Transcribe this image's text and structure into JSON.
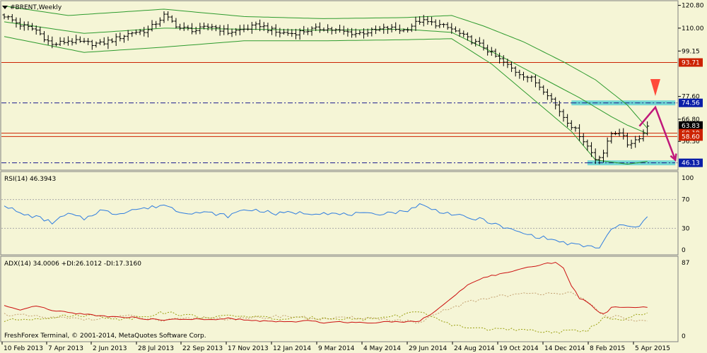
{
  "terminal": {
    "title": "#BRENT,Weekly",
    "credit": "FreshForex Terminal, © 2001-2014, MetaQuotes Software Corp."
  },
  "colors": {
    "background": "#f5f5d6",
    "bars": "#000000",
    "bollinger": "#2e9b2e",
    "resistance": "#cc2200",
    "dashed_level": "#1a1a8c",
    "zone": "#5fd3d3",
    "forecast": "#c0187a",
    "rsi": "#2f7de0",
    "adx": "#cc1010",
    "di_plus": "#9aa010",
    "di_minus": "#c3a070",
    "price_tag_red": "#cc2200",
    "price_tag_blue": "#0a1ea8",
    "price_tag_black": "#000000"
  },
  "icons": [
    "dropdown-triangle-icon",
    "sell-arrow-icon"
  ],
  "price_panel": {
    "axis_labels": [
      "120.80",
      "110.00",
      "99.15",
      "77.60",
      "66.80",
      "56.30"
    ],
    "price_tags": [
      {
        "name": "price-tag-93-71",
        "text": "93.71",
        "value": 93.71,
        "color": "#cc2200"
      },
      {
        "name": "price-tag-74-56",
        "text": "74.56",
        "value": 74.56,
        "color": "#0a1ea8"
      },
      {
        "name": "price-tag-63-83",
        "text": "63.83",
        "value": 63.83,
        "color": "#000000"
      },
      {
        "name": "price-tag-60-19",
        "text": "60.19",
        "value": 60.19,
        "color": "#cc2200"
      },
      {
        "name": "price-tag-58-60",
        "text": "58.60",
        "value": 58.6,
        "color": "#cc2200"
      },
      {
        "name": "price-tag-46-13",
        "text": "46.13",
        "value": 46.13,
        "color": "#0a1ea8"
      }
    ],
    "horizontal_lines": [
      {
        "value": 93.71,
        "style": "solid",
        "color": "#cc2200"
      },
      {
        "value": 60.19,
        "style": "solid",
        "color": "#cc2200"
      },
      {
        "value": 58.6,
        "style": "solid",
        "color": "#cc2200"
      },
      {
        "value": 74.56,
        "style": "dashdot",
        "color": "#1a1a8c"
      },
      {
        "value": 46.13,
        "style": "dashdot",
        "color": "#1a1a8c"
      }
    ],
    "zones": [
      {
        "value": 74.56,
        "from_week": 142,
        "to_week": 168
      },
      {
        "value": 46.13,
        "from_week": 146,
        "to_week": 168
      }
    ],
    "forecast_path": [
      [
        159,
        63.5
      ],
      [
        163,
        72.5
      ],
      [
        165.5,
        60.0
      ],
      [
        168,
        47.5
      ]
    ],
    "sell_marker": {
      "week": 163,
      "value": 78.5
    }
  },
  "rsi_panel": {
    "label": "RSI(14) 46.3943",
    "axis_labels": [
      "100",
      "70",
      "30",
      "0"
    ],
    "levels": [
      70,
      30
    ]
  },
  "adx_panel": {
    "label": "ADX(14) 34.0006 +DI:26.1012 -DI:17.3160",
    "axis_labels": [
      "87",
      "0"
    ]
  },
  "time_axis": [
    "10 Feb 2013",
    "7 Apr 2013",
    "2 Jun 2013",
    "28 Jul 2013",
    "22 Sep 2013",
    "17 Nov 2013",
    "12 Jan 2014",
    "9 Mar 2014",
    "4 May 2014",
    "29 Jun 2014",
    "24 Aug 2014",
    "19 Oct 2014",
    "14 Dec 2014",
    "8 Feb 2015",
    "5 Apr 2015"
  ],
  "chart_data": {
    "type": "line",
    "title": "#BRENT,Weekly",
    "x_weeks_start": "10 Feb 2013",
    "weeks": 162,
    "price_close_anchors": [
      [
        0,
        116.0
      ],
      [
        4,
        111.5
      ],
      [
        8,
        109.0
      ],
      [
        12,
        102.0
      ],
      [
        16,
        104.0
      ],
      [
        20,
        103.0
      ],
      [
        24,
        102.5
      ],
      [
        28,
        105.0
      ],
      [
        32,
        108.0
      ],
      [
        36,
        109.0
      ],
      [
        40,
        116.0
      ],
      [
        44,
        110.0
      ],
      [
        48,
        109.0
      ],
      [
        52,
        111.0
      ],
      [
        56,
        108.0
      ],
      [
        60,
        109.5
      ],
      [
        64,
        111.5
      ],
      [
        68,
        108.0
      ],
      [
        72,
        107.5
      ],
      [
        76,
        109.0
      ],
      [
        80,
        110.0
      ],
      [
        84,
        108.5
      ],
      [
        88,
        107.5
      ],
      [
        92,
        108.5
      ],
      [
        96,
        110.0
      ],
      [
        100,
        109.0
      ],
      [
        104,
        113.5
      ],
      [
        108,
        112.0
      ],
      [
        112,
        109.5
      ],
      [
        116,
        105.0
      ],
      [
        120,
        101.0
      ],
      [
        124,
        95.0
      ],
      [
        128,
        89.5
      ],
      [
        132,
        86.0
      ],
      [
        136,
        79.0
      ],
      [
        140,
        68.0
      ],
      [
        144,
        59.5
      ],
      [
        146,
        54.0
      ],
      [
        148,
        48.0
      ],
      [
        150,
        51.0
      ],
      [
        152,
        60.0
      ],
      [
        154,
        61.0
      ],
      [
        156,
        55.0
      ],
      [
        158,
        57.0
      ],
      [
        160,
        60.0
      ],
      [
        161,
        63.83
      ]
    ],
    "bb_upper_anchors": [
      [
        0,
        120.5
      ],
      [
        16,
        116.0
      ],
      [
        40,
        119.0
      ],
      [
        60,
        115.5
      ],
      [
        80,
        114.5
      ],
      [
        100,
        115.0
      ],
      [
        112,
        116.0
      ],
      [
        120,
        111.0
      ],
      [
        130,
        103.5
      ],
      [
        140,
        94.0
      ],
      [
        148,
        85.5
      ],
      [
        156,
        73.5
      ],
      [
        161,
        62.5
      ]
    ],
    "bb_mid_anchors": [
      [
        0,
        113.0
      ],
      [
        20,
        107.5
      ],
      [
        40,
        110.0
      ],
      [
        60,
        109.5
      ],
      [
        80,
        109.0
      ],
      [
        100,
        109.5
      ],
      [
        112,
        108.0
      ],
      [
        124,
        97.0
      ],
      [
        134,
        87.0
      ],
      [
        144,
        77.0
      ],
      [
        152,
        68.0
      ],
      [
        156,
        64.0
      ],
      [
        161,
        60.0
      ]
    ],
    "bb_lower_anchors": [
      [
        0,
        106.0
      ],
      [
        20,
        98.5
      ],
      [
        40,
        101.0
      ],
      [
        60,
        104.0
      ],
      [
        80,
        104.0
      ],
      [
        100,
        104.5
      ],
      [
        112,
        105.0
      ],
      [
        122,
        93.0
      ],
      [
        132,
        77.0
      ],
      [
        142,
        61.0
      ],
      [
        148,
        47.5
      ],
      [
        152,
        46.5
      ],
      [
        156,
        45.5
      ],
      [
        161,
        46.8
      ]
    ],
    "rsi_anchors": [
      [
        0,
        63
      ],
      [
        4,
        50
      ],
      [
        8,
        46
      ],
      [
        12,
        38
      ],
      [
        16,
        50
      ],
      [
        20,
        43
      ],
      [
        24,
        55
      ],
      [
        28,
        50
      ],
      [
        32,
        56
      ],
      [
        36,
        58
      ],
      [
        40,
        63
      ],
      [
        44,
        53
      ],
      [
        48,
        52
      ],
      [
        52,
        51
      ],
      [
        56,
        47
      ],
      [
        60,
        56
      ],
      [
        64,
        55
      ],
      [
        68,
        50
      ],
      [
        72,
        52
      ],
      [
        76,
        51
      ],
      [
        80,
        52
      ],
      [
        84,
        49
      ],
      [
        88,
        50
      ],
      [
        92,
        49
      ],
      [
        96,
        52
      ],
      [
        100,
        53
      ],
      [
        104,
        63
      ],
      [
        108,
        55
      ],
      [
        112,
        50
      ],
      [
        116,
        44
      ],
      [
        120,
        42
      ],
      [
        124,
        33
      ],
      [
        128,
        26
      ],
      [
        132,
        20
      ],
      [
        136,
        16
      ],
      [
        140,
        10
      ],
      [
        144,
        6
      ],
      [
        148,
        4
      ],
      [
        149,
        3
      ],
      [
        152,
        28
      ],
      [
        154,
        35
      ],
      [
        156,
        32
      ],
      [
        158,
        31
      ],
      [
        160,
        38
      ],
      [
        161,
        46.39
      ]
    ],
    "adx_anchors": [
      [
        0,
        36
      ],
      [
        4,
        30
      ],
      [
        8,
        36
      ],
      [
        12,
        30
      ],
      [
        16,
        28
      ],
      [
        20,
        26
      ],
      [
        24,
        24
      ],
      [
        28,
        23
      ],
      [
        32,
        22
      ],
      [
        36,
        20
      ],
      [
        40,
        19
      ],
      [
        44,
        20
      ],
      [
        48,
        20
      ],
      [
        52,
        19
      ],
      [
        56,
        21
      ],
      [
        60,
        19
      ],
      [
        64,
        18
      ],
      [
        68,
        17
      ],
      [
        72,
        17
      ],
      [
        76,
        18
      ],
      [
        80,
        16
      ],
      [
        84,
        17
      ],
      [
        88,
        16
      ],
      [
        92,
        16
      ],
      [
        96,
        17
      ],
      [
        100,
        17
      ],
      [
        104,
        18
      ],
      [
        108,
        30
      ],
      [
        112,
        45
      ],
      [
        116,
        60
      ],
      [
        120,
        70
      ],
      [
        124,
        73
      ],
      [
        128,
        78
      ],
      [
        132,
        82
      ],
      [
        136,
        86
      ],
      [
        138,
        87
      ],
      [
        140,
        80
      ],
      [
        142,
        60
      ],
      [
        144,
        45
      ],
      [
        146,
        40
      ],
      [
        148,
        32
      ],
      [
        149,
        28
      ],
      [
        150,
        27
      ],
      [
        151,
        29
      ],
      [
        152,
        34.0
      ]
    ],
    "di_plus_anchors": [
      [
        0,
        18
      ],
      [
        10,
        22
      ],
      [
        20,
        25
      ],
      [
        30,
        20
      ],
      [
        40,
        28
      ],
      [
        50,
        22
      ],
      [
        60,
        24
      ],
      [
        70,
        20
      ],
      [
        80,
        22
      ],
      [
        90,
        20
      ],
      [
        100,
        25
      ],
      [
        104,
        30
      ],
      [
        110,
        15
      ],
      [
        116,
        10
      ],
      [
        124,
        8
      ],
      [
        132,
        6
      ],
      [
        140,
        5
      ],
      [
        146,
        7
      ],
      [
        150,
        22
      ],
      [
        154,
        18
      ],
      [
        158,
        24
      ],
      [
        161,
        26.1
      ]
    ],
    "di_minus_anchors": [
      [
        0,
        26
      ],
      [
        10,
        22
      ],
      [
        20,
        20
      ],
      [
        30,
        24
      ],
      [
        40,
        18
      ],
      [
        50,
        22
      ],
      [
        60,
        20
      ],
      [
        70,
        24
      ],
      [
        80,
        20
      ],
      [
        90,
        22
      ],
      [
        100,
        18
      ],
      [
        104,
        15
      ],
      [
        110,
        30
      ],
      [
        116,
        40
      ],
      [
        124,
        48
      ],
      [
        132,
        50
      ],
      [
        138,
        52
      ],
      [
        142,
        50
      ],
      [
        146,
        40
      ],
      [
        150,
        25
      ],
      [
        154,
        22
      ],
      [
        158,
        18
      ],
      [
        161,
        17.3
      ]
    ]
  }
}
